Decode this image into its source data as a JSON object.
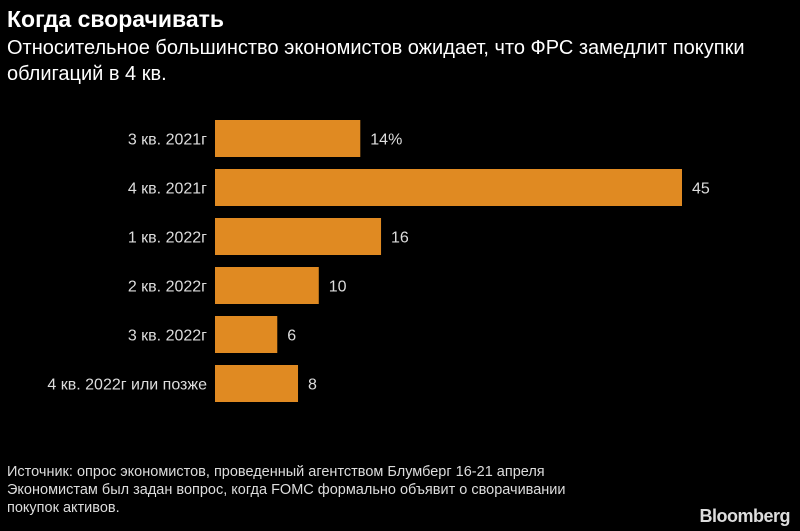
{
  "header": {
    "title": "Когда сворачивать",
    "subtitle": "Относительное большинство экономистов ожидает, что ФРС замедлит покупки облигаций в 4 кв."
  },
  "chart_data": {
    "type": "bar",
    "orientation": "horizontal",
    "categories": [
      "3 кв. 2021г",
      "4 кв. 2021г",
      "1 кв. 2022г",
      "2 кв. 2022г",
      "3 кв. 2022г",
      "4 кв. 2022г или позже"
    ],
    "values": [
      14,
      45,
      16,
      10,
      6,
      8
    ],
    "labels": [
      "14%",
      "45",
      "16",
      "10",
      "6",
      "8"
    ],
    "unit": "%",
    "xlim": [
      0,
      45
    ],
    "color": "#e08a22"
  },
  "footer": {
    "lines": [
      "Источник: опрос экономистов, проведенный агентством Блумберг 16-21 апреля",
      "Экономистам был задан вопрос, когда FOMC формально объявит о сворачивании",
      "покупок активов."
    ]
  },
  "brand": "Bloomberg"
}
